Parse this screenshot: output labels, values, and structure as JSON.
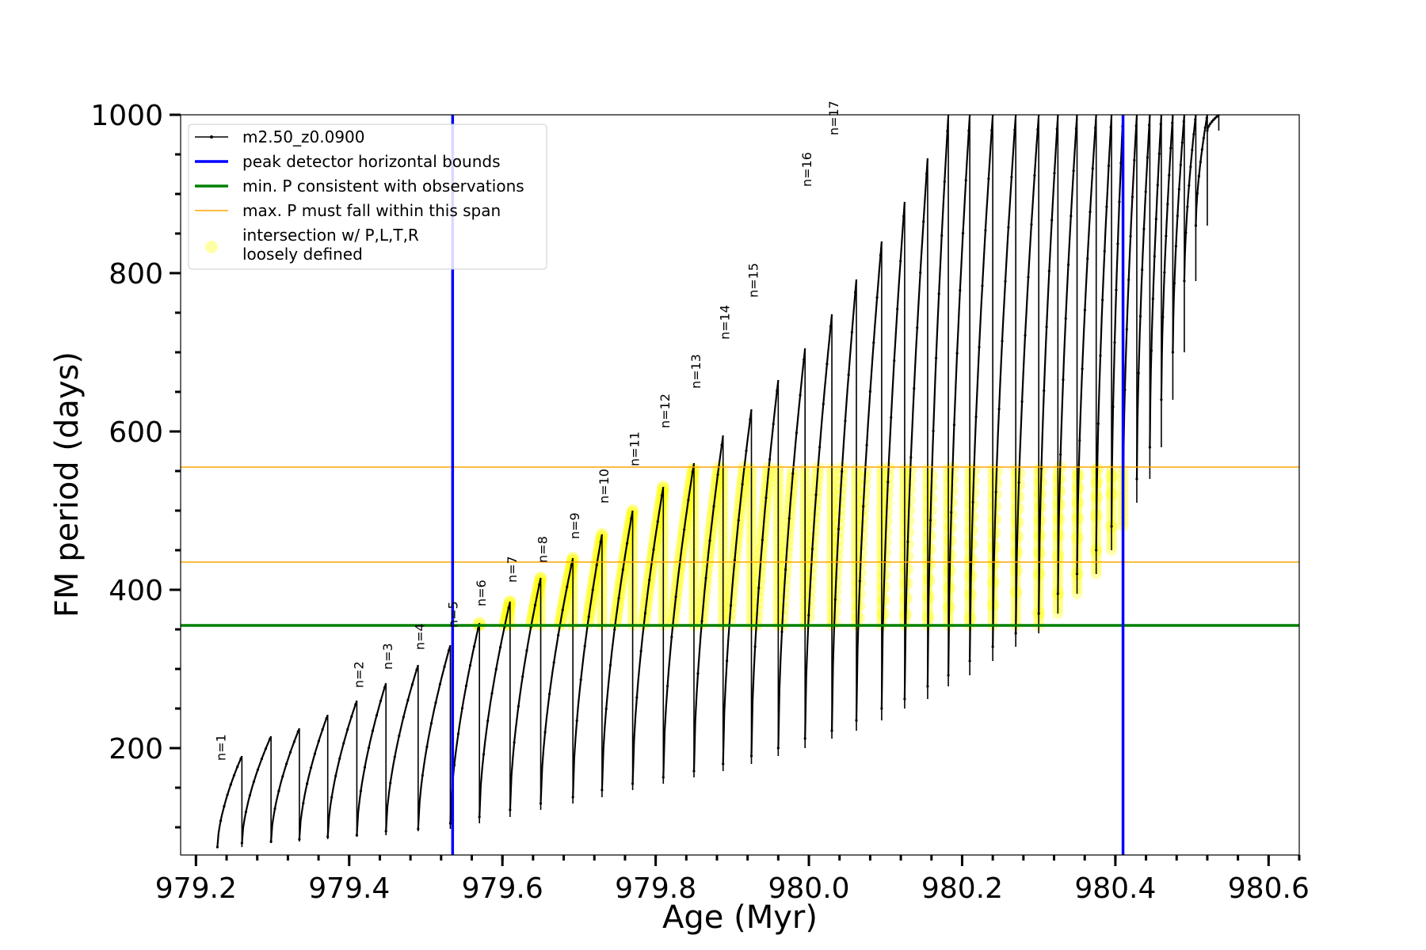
{
  "chart_data": {
    "type": "line",
    "xlabel": "Age (Myr)",
    "ylabel": "FM period (days)",
    "xlim": [
      979.18,
      980.64
    ],
    "ylim": [
      65,
      1000
    ],
    "x_ticks": [
      979.2,
      979.4,
      979.6,
      979.8,
      980.0,
      980.2,
      980.4,
      980.6
    ],
    "x_tick_labels": [
      "979.2",
      "979.4",
      "979.6",
      "979.8",
      "980.0",
      "980.2",
      "980.4",
      "980.6"
    ],
    "y_ticks": [
      200,
      400,
      600,
      800,
      1000
    ],
    "y_tick_labels": [
      "200",
      "400",
      "600",
      "800",
      "1000"
    ],
    "legend": {
      "placement": "top-left",
      "entries": [
        {
          "label": "m2.50_z0.0900",
          "style": "line-marker",
          "color": "#000000"
        },
        {
          "label": "peak detector horizontal bounds",
          "style": "line",
          "color": "#0000ff"
        },
        {
          "label": "min. P consistent with observations",
          "style": "line",
          "color": "#008000"
        },
        {
          "label": "max. P must fall within this span",
          "style": "line",
          "color": "#ffa500"
        },
        {
          "label_lines": [
            "intersection w/ P,L,T,R",
            "loosely defined"
          ],
          "style": "dot",
          "color": "#ffff00"
        }
      ]
    },
    "vertical_lines": [
      {
        "x": 979.535,
        "color": "#0000ff"
      },
      {
        "x": 980.41,
        "color": "#0000ff"
      }
    ],
    "horizontal_lines": [
      {
        "y": 355,
        "color": "#008000"
      },
      {
        "y": 435,
        "color": "#ffa500"
      },
      {
        "y": 555,
        "color": "#ffa500"
      }
    ],
    "min_period": 355,
    "max_period_span": [
      435,
      555
    ],
    "series": [
      {
        "name": "m2.50_z0.0900",
        "color": "#000000",
        "pulses": [
          {
            "start": 979.228,
            "end": 979.26,
            "min": 75,
            "peak": 190
          },
          {
            "start": 979.26,
            "end": 979.298,
            "min": 80,
            "peak": 215
          },
          {
            "start": 979.298,
            "end": 979.335,
            "min": 82,
            "peak": 225
          },
          {
            "start": 979.335,
            "end": 979.372,
            "min": 85,
            "peak": 242
          },
          {
            "start": 979.372,
            "end": 979.41,
            "min": 88,
            "peak": 260
          },
          {
            "start": 979.41,
            "end": 979.448,
            "min": 90,
            "peak": 282
          },
          {
            "start": 979.448,
            "end": 979.49,
            "min": 95,
            "peak": 305
          },
          {
            "start": 979.49,
            "end": 979.532,
            "min": 98,
            "peak": 330
          },
          {
            "start": 979.532,
            "end": 979.57,
            "min": 105,
            "peak": 358
          },
          {
            "start": 979.57,
            "end": 979.61,
            "min": 113,
            "peak": 385
          },
          {
            "start": 979.61,
            "end": 979.65,
            "min": 122,
            "peak": 415
          },
          {
            "start": 979.65,
            "end": 979.692,
            "min": 130,
            "peak": 440
          },
          {
            "start": 979.692,
            "end": 979.73,
            "min": 138,
            "peak": 470
          },
          {
            "start": 979.73,
            "end": 979.77,
            "min": 147,
            "peak": 500
          },
          {
            "start": 979.77,
            "end": 979.81,
            "min": 155,
            "peak": 530
          },
          {
            "start": 979.81,
            "end": 979.85,
            "min": 163,
            "peak": 560
          },
          {
            "start": 979.85,
            "end": 979.888,
            "min": 171,
            "peak": 595
          },
          {
            "start": 979.888,
            "end": 979.925,
            "min": 180,
            "peak": 628
          },
          {
            "start": 979.925,
            "end": 979.96,
            "min": 190,
            "peak": 665
          },
          {
            "start": 979.96,
            "end": 979.995,
            "min": 200,
            "peak": 705
          },
          {
            "start": 979.995,
            "end": 980.03,
            "min": 212,
            "peak": 748
          },
          {
            "start": 980.03,
            "end": 980.062,
            "min": 222,
            "peak": 792
          },
          {
            "start": 980.062,
            "end": 980.095,
            "min": 235,
            "peak": 840
          },
          {
            "start": 980.095,
            "end": 980.125,
            "min": 250,
            "peak": 890
          },
          {
            "start": 980.125,
            "end": 980.155,
            "min": 262,
            "peak": 945
          },
          {
            "start": 980.155,
            "end": 980.182,
            "min": 278,
            "peak": 1000
          },
          {
            "start": 980.182,
            "end": 980.21,
            "min": 292,
            "peak": 1000
          },
          {
            "start": 980.21,
            "end": 980.24,
            "min": 310,
            "peak": 1000
          },
          {
            "start": 980.24,
            "end": 980.27,
            "min": 328,
            "peak": 1000
          },
          {
            "start": 980.27,
            "end": 980.3,
            "min": 345,
            "peak": 1000
          },
          {
            "start": 980.3,
            "end": 980.325,
            "min": 370,
            "peak": 1000
          },
          {
            "start": 980.325,
            "end": 980.35,
            "min": 395,
            "peak": 1000
          },
          {
            "start": 980.35,
            "end": 980.375,
            "min": 420,
            "peak": 1000
          },
          {
            "start": 980.375,
            "end": 980.395,
            "min": 450,
            "peak": 1000
          },
          {
            "start": 980.395,
            "end": 980.41,
            "min": 480,
            "peak": 1000
          },
          {
            "start": 980.41,
            "end": 980.428,
            "min": 510,
            "peak": 1000
          },
          {
            "start": 980.428,
            "end": 980.445,
            "min": 540,
            "peak": 1000
          },
          {
            "start": 980.445,
            "end": 980.46,
            "min": 580,
            "peak": 1000
          },
          {
            "start": 980.46,
            "end": 980.475,
            "min": 640,
            "peak": 1000
          },
          {
            "start": 980.475,
            "end": 980.49,
            "min": 700,
            "peak": 1000
          },
          {
            "start": 980.49,
            "end": 980.505,
            "min": 790,
            "peak": 1000
          },
          {
            "start": 980.505,
            "end": 980.52,
            "min": 860,
            "peak": 1000
          },
          {
            "start": 980.52,
            "end": 980.535,
            "min": 980,
            "peak": 1000
          }
        ]
      }
    ],
    "peak_annotations": [
      {
        "text": "n=1",
        "x": 979.233,
        "y": 190
      },
      {
        "text": "n=2",
        "x": 979.413,
        "y": 282
      },
      {
        "text": "n=3",
        "x": 979.451,
        "y": 305
      },
      {
        "text": "n=4",
        "x": 979.493,
        "y": 330
      },
      {
        "text": "n=5",
        "x": 979.536,
        "y": 358
      },
      {
        "text": "n=6",
        "x": 979.573,
        "y": 385
      },
      {
        "text": "n=7",
        "x": 979.613,
        "y": 415
      },
      {
        "text": "n=8",
        "x": 979.653,
        "y": 440
      },
      {
        "text": "n=9",
        "x": 979.695,
        "y": 470
      },
      {
        "text": "n=10",
        "x": 979.733,
        "y": 515
      },
      {
        "text": "n=11",
        "x": 979.773,
        "y": 562
      },
      {
        "text": "n=12",
        "x": 979.813,
        "y": 610
      },
      {
        "text": "n=13",
        "x": 979.853,
        "y": 660
      },
      {
        "text": "n=14",
        "x": 979.891,
        "y": 722
      },
      {
        "text": "n=15",
        "x": 979.928,
        "y": 775
      },
      {
        "text": "n=16",
        "x": 979.998,
        "y": 915
      },
      {
        "text": "n=17",
        "x": 980.033,
        "y": 980
      }
    ]
  }
}
